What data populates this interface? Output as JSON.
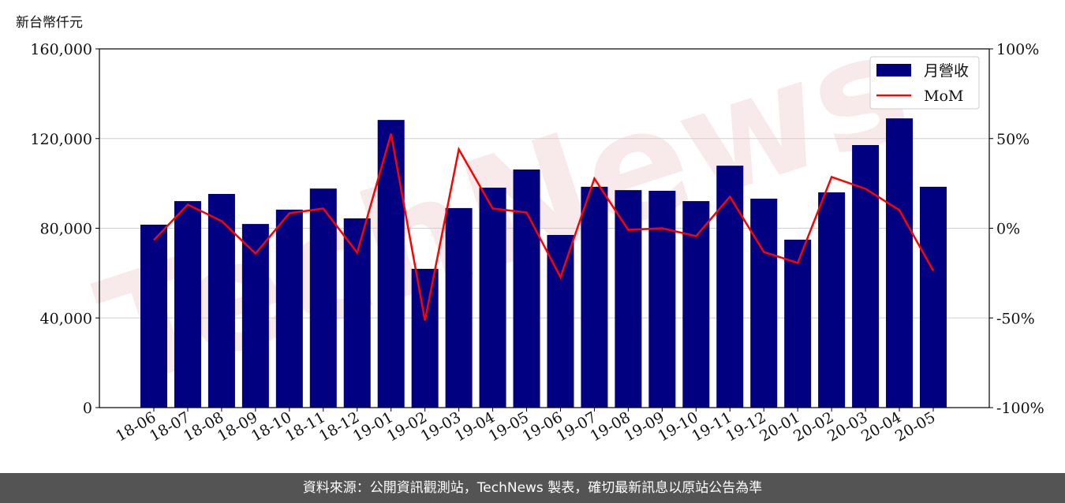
{
  "chart_data": {
    "type": "bar+line",
    "ylabel": "新台幣仟元",
    "categories": [
      "18-06",
      "18-07",
      "18-08",
      "18-09",
      "18-10",
      "18-11",
      "18-12",
      "19-01",
      "19-02",
      "19-03",
      "19-04",
      "19-05",
      "19-06",
      "19-07",
      "19-08",
      "19-09",
      "19-10",
      "19-11",
      "19-12",
      "20-01",
      "20-02",
      "20-03",
      "20-04",
      "20-05"
    ],
    "series": [
      {
        "name": "月營收",
        "type": "bar",
        "axis": "left",
        "color": "#000080",
        "values": [
          81600,
          92100,
          95300,
          81900,
          88300,
          97700,
          84400,
          128300,
          61900,
          89000,
          98100,
          106200,
          77000,
          98500,
          97000,
          96700,
          92100,
          107900,
          93200,
          74900,
          96000,
          117100,
          129000,
          98500
        ]
      },
      {
        "name": "MoM",
        "type": "line",
        "axis": "right",
        "color": "#ff0000",
        "values": [
          -6.6,
          13.2,
          4.0,
          -14.1,
          8.4,
          11.0,
          -13.6,
          52.7,
          -51.4,
          44.0,
          11.0,
          8.8,
          -27.3,
          27.7,
          -0.9,
          0.0,
          -4.4,
          17.6,
          -13.2,
          -19.3,
          28.6,
          22.0,
          10.1,
          -23.7
        ]
      }
    ],
    "ylim_left": [
      0,
      160000
    ],
    "yticks_left": [
      "0",
      "40,000",
      "80,000",
      "120,000",
      "160,000"
    ],
    "ylim_right": [
      -100,
      100
    ],
    "yticks_right": [
      "-100%",
      "-50%",
      "0%",
      "50%",
      "100%"
    ],
    "grid": "horizontal",
    "legend_placement": "top-right",
    "watermark": "TechNews"
  },
  "footer": {
    "source": "資料來源：公開資訊觀測站，TechNews 製表，確切最新訊息以原站公告為準"
  }
}
